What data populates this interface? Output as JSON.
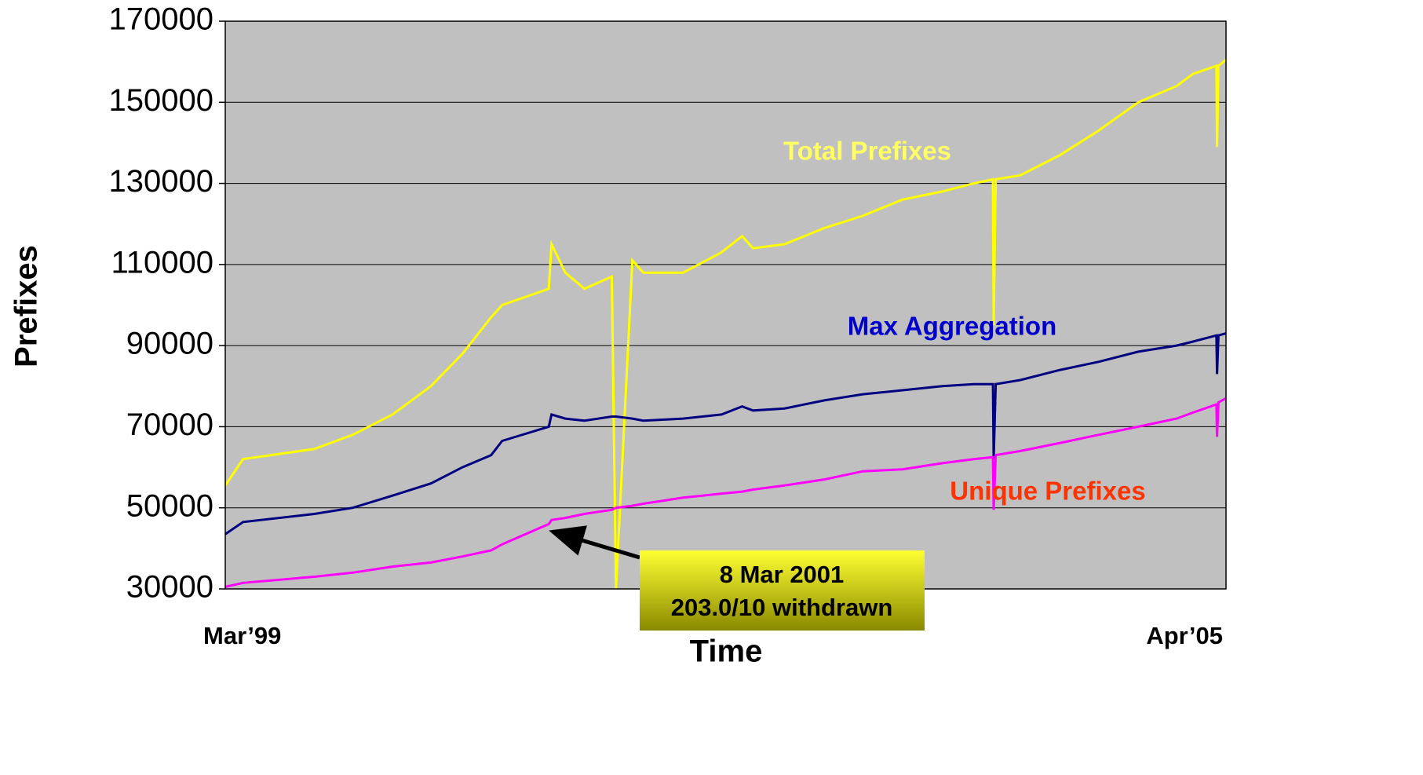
{
  "chart_data": {
    "type": "line",
    "x_label": "Time",
    "y_label": "Prefixes",
    "annotation": [
      "8 Mar 2001",
      "203.0/10 withdrawn"
    ],
    "grid": true,
    "x": [
      0,
      1.3,
      6.5,
      9.3,
      12.2,
      15,
      17.3,
      19.4,
      20.2,
      23.6,
      23.8,
      24.8,
      26.2,
      28.2,
      28.5,
      29.7,
      30.5,
      33.4,
      36.2,
      37.7,
      38.5,
      40.8,
      43.7,
      46.5,
      49.4,
      52.3,
      54.6,
      56,
      56.05,
      56.2,
      58,
      60.9,
      63.7,
      66.6,
      69.4,
      70.6,
      72.3,
      72.35,
      72.45,
      73
    ],
    "xlim": [
      0,
      73
    ],
    "xticks": [
      {
        "value": 0,
        "label": "Mar’99"
      },
      {
        "value": 73,
        "label": "Apr’05"
      }
    ],
    "ylim": [
      30000,
      170000
    ],
    "yticks": [
      30000,
      50000,
      70000,
      90000,
      110000,
      130000,
      150000,
      170000
    ],
    "series": [
      {
        "name": "Total Prefixes",
        "color": "#ffff00",
        "label_color": "#ffff66",
        "values": [
          55500,
          62000,
          64500,
          68000,
          73000,
          80000,
          88000,
          97000,
          100000,
          104000,
          115000,
          108000,
          104000,
          107000,
          30000,
          111000,
          108000,
          108000,
          113000,
          117000,
          114000,
          115000,
          119000,
          122000,
          126000,
          128000,
          130000,
          131000,
          95000,
          131000,
          132000,
          137000,
          143000,
          150000,
          154000,
          157000,
          159000,
          139000,
          159000,
          160500
        ]
      },
      {
        "name": "Max Aggregation",
        "color": "#000080",
        "label_color": "#0000cc",
        "values": [
          43500,
          46500,
          48500,
          50000,
          53000,
          56000,
          60000,
          63000,
          66500,
          70000,
          73000,
          72000,
          71500,
          72500,
          72500,
          72000,
          71500,
          72000,
          73000,
          75000,
          74000,
          74500,
          76500,
          78000,
          79000,
          80000,
          80500,
          80500,
          62000,
          80500,
          81500,
          84000,
          86000,
          88500,
          90000,
          91000,
          92500,
          83000,
          92500,
          93000
        ]
      },
      {
        "name": "Unique Prefixes",
        "color": "#ff00ff",
        "label_color": "#ff3300",
        "values": [
          30500,
          31500,
          33000,
          34000,
          35500,
          36500,
          38000,
          39500,
          41000,
          46000,
          47000,
          47500,
          48500,
          49500,
          50000,
          50500,
          51000,
          52500,
          53500,
          54000,
          54500,
          55500,
          57000,
          59000,
          59500,
          61000,
          62000,
          62500,
          49500,
          63000,
          64000,
          66000,
          68000,
          70000,
          72000,
          73500,
          75500,
          67500,
          76000,
          77000
        ]
      }
    ]
  }
}
